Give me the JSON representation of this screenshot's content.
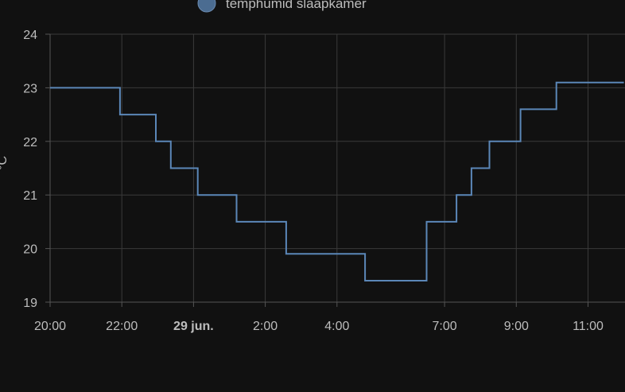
{
  "chart_data": {
    "type": "line",
    "step": true,
    "legend": {
      "position": "top-center",
      "entries": [
        {
          "label": "temphumid slaapkamer",
          "color": "#4b6c91"
        }
      ]
    },
    "ylabel": "°C",
    "ylim": [
      19,
      24
    ],
    "y_ticks": [
      "19",
      "20",
      "21",
      "22",
      "23",
      "24"
    ],
    "x_range": [
      "2024-06-28T20:00",
      "2024-06-29T12:00"
    ],
    "x_ticks": [
      {
        "label": "20:00",
        "t": "2024-06-28T20:00",
        "bold": false
      },
      {
        "label": "22:00",
        "t": "2024-06-28T22:00",
        "bold": false
      },
      {
        "label": "29 jun.",
        "t": "2024-06-29T00:00",
        "bold": true
      },
      {
        "label": "2:00",
        "t": "2024-06-29T02:00",
        "bold": false
      },
      {
        "label": "4:00",
        "t": "2024-06-29T04:00",
        "bold": false
      },
      {
        "label": "7:00",
        "t": "2024-06-29T07:00",
        "bold": false
      },
      {
        "label": "9:00",
        "t": "2024-06-29T09:00",
        "bold": false
      },
      {
        "label": "11:00",
        "t": "2024-06-29T11:00",
        "bold": false
      }
    ],
    "grid": true,
    "series": [
      {
        "name": "temphumid slaapkamer",
        "color": "#5b87b8",
        "points": [
          {
            "t": "2024-06-28T20:00",
            "y": 23.0
          },
          {
            "t": "2024-06-28T21:57",
            "y": 22.5
          },
          {
            "t": "2024-06-28T22:57",
            "y": 22.0
          },
          {
            "t": "2024-06-28T23:22",
            "y": 21.5
          },
          {
            "t": "2024-06-29T00:07",
            "y": 21.0
          },
          {
            "t": "2024-06-29T01:12",
            "y": 20.5
          },
          {
            "t": "2024-06-29T02:35",
            "y": 19.9
          },
          {
            "t": "2024-06-29T04:47",
            "y": 19.4
          },
          {
            "t": "2024-06-29T06:30",
            "y": 20.5
          },
          {
            "t": "2024-06-29T07:20",
            "y": 21.0
          },
          {
            "t": "2024-06-29T07:45",
            "y": 21.5
          },
          {
            "t": "2024-06-29T08:15",
            "y": 22.0
          },
          {
            "t": "2024-06-29T09:07",
            "y": 22.6
          },
          {
            "t": "2024-06-29T10:07",
            "y": 23.1
          },
          {
            "t": "2024-06-29T12:00",
            "y": 23.1
          }
        ]
      }
    ]
  }
}
